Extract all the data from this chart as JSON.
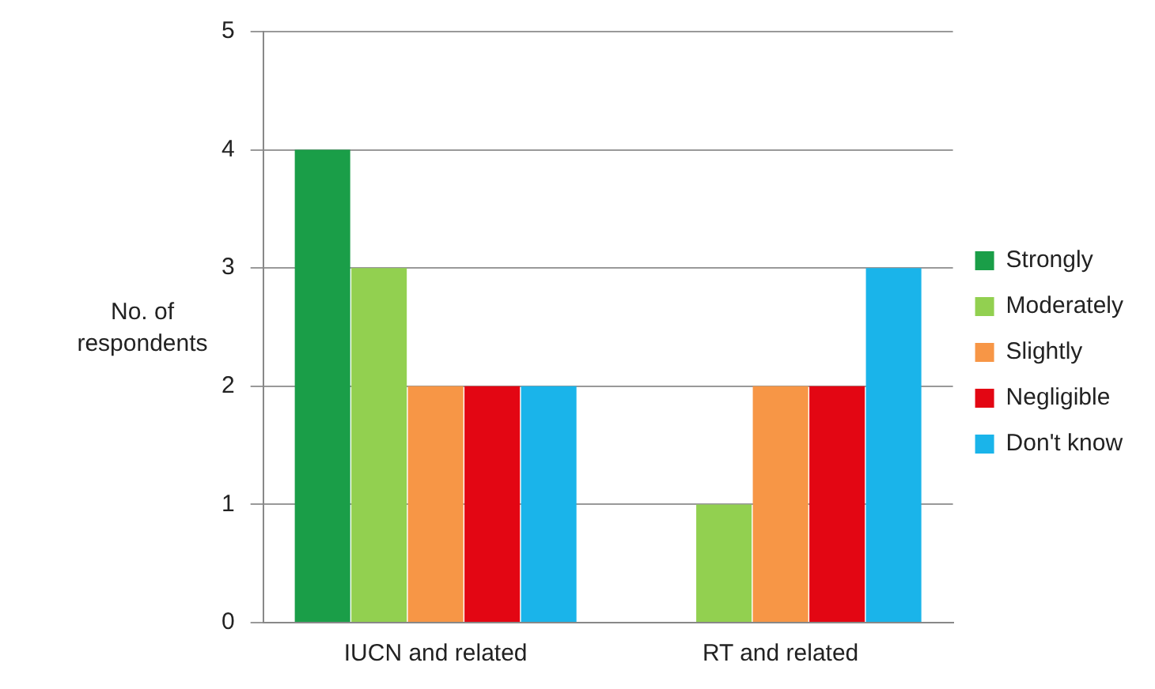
{
  "chart_data": {
    "type": "bar",
    "ylabel": "No. of respondents",
    "categories": [
      "IUCN and related",
      "RT and related"
    ],
    "series": [
      {
        "name": "Strongly",
        "color": "#1a9e48",
        "values": [
          4,
          0
        ]
      },
      {
        "name": "Moderately",
        "color": "#92d050",
        "values": [
          3,
          1
        ]
      },
      {
        "name": "Slightly",
        "color": "#f79646",
        "values": [
          2,
          2
        ]
      },
      {
        "name": "Negligible",
        "color": "#e30613",
        "values": [
          2,
          2
        ]
      },
      {
        "name": "Don't know",
        "color": "#1ab4ea",
        "values": [
          2,
          3
        ]
      }
    ],
    "ylim": [
      0,
      5
    ],
    "yticks": [
      0,
      1,
      2,
      3,
      4,
      5
    ],
    "grid": "y",
    "legend": "right"
  }
}
